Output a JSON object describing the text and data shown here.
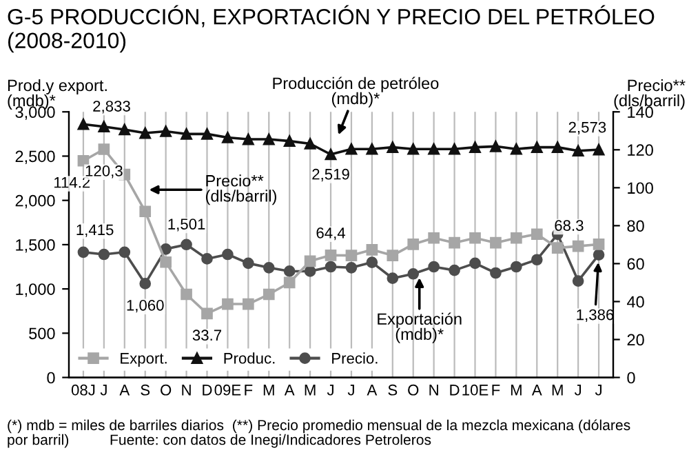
{
  "chart_data": {
    "type": "line",
    "title": "G-5 PRODUCCIÓN, EXPORTACIÓN Y PRECIO DEL PETRÓLEO (2008-2010)",
    "ylabel": "Prod.y export.\n(mdb)*",
    "y2label": "Precio**\n(dls/barril)",
    "categories": [
      "08J",
      "J",
      "A",
      "S",
      "O",
      "N",
      "D",
      "09E",
      "F",
      "M",
      "A",
      "M",
      "J",
      "J",
      "A",
      "S",
      "O",
      "N",
      "D",
      "10E",
      "F",
      "M",
      "A",
      "M",
      "J",
      "J"
    ],
    "series": [
      {
        "name": "Export.",
        "color": "#a6a6a6",
        "marker": "square",
        "axis": "y2",
        "values": [
          114.2,
          120.3,
          107,
          87.5,
          60.8,
          43.8,
          33.7,
          38.7,
          38.7,
          43.8,
          50,
          61.3,
          64.4,
          64.3,
          67.3,
          64.3,
          70.2,
          73.5,
          71.0,
          73.5,
          71.0,
          73.5,
          75.5,
          68.3,
          69.2,
          70.2
        ],
        "value_labels": [
          "114.2",
          "120,3",
          null,
          null,
          null,
          null,
          "33.7",
          null,
          null,
          null,
          null,
          null,
          "64,4",
          null,
          null,
          null,
          null,
          null,
          null,
          null,
          null,
          null,
          null,
          "68.3",
          null,
          null
        ]
      },
      {
        "name": "Produc.",
        "color": "#111111",
        "marker": "triangle",
        "values": [
          2860,
          2833,
          2800,
          2760,
          2780,
          2750,
          2750,
          2710,
          2690,
          2690,
          2670,
          2640,
          2519,
          2580,
          2580,
          2600,
          2580,
          2580,
          2580,
          2600,
          2610,
          2580,
          2600,
          2600,
          2560,
          2573
        ],
        "value_labels": [
          null,
          "2,833",
          null,
          null,
          null,
          null,
          null,
          null,
          null,
          null,
          null,
          null,
          "2,519",
          null,
          null,
          null,
          null,
          null,
          null,
          null,
          null,
          null,
          null,
          null,
          null,
          "2,573"
        ]
      },
      {
        "name": "Precio.",
        "color": "#4d4d4d",
        "marker": "circle",
        "values": [
          1415,
          1390,
          1415,
          1060,
          1450,
          1501,
          1340,
          1390,
          1290,
          1240,
          1200,
          1200,
          1250,
          1240,
          1300,
          1120,
          1170,
          1250,
          1210,
          1290,
          1180,
          1250,
          1330,
          1617,
          1090,
          1386
        ],
        "value_labels": [
          "1,415",
          null,
          null,
          "1,060",
          null,
          "1,501",
          null,
          null,
          null,
          null,
          null,
          null,
          null,
          null,
          null,
          null,
          null,
          null,
          null,
          null,
          null,
          null,
          null,
          null,
          null,
          "1,386"
        ]
      }
    ],
    "ylim": [
      0,
      3000
    ],
    "yticks": [
      0,
      500,
      {
        "value": 1000,
        "label": "1,000"
      },
      {
        "value": 1500,
        "label": "1,500"
      },
      {
        "value": 2000,
        "label": "2,000"
      },
      {
        "value": 2500,
        "label": "2,500"
      },
      {
        "value": 3000,
        "label": "3,000"
      }
    ],
    "y2lim": [
      0,
      140
    ],
    "y2ticks": [
      0,
      20,
      40,
      60,
      80,
      100,
      120,
      140
    ],
    "grid": "x",
    "legend": "bottom left",
    "line_style": "solid",
    "annotations": [
      "Precio**\n(dls/barril)",
      "Producción de petróleo\n(mdb)*",
      {
        "text": "Exportación\n(mdb)*",
        "y": 1170
      },
      "(*) mdb = miles de barriles diarios  (**) Precio promedio mensual de la mezcla mexicana (dólares\npor barril)          Fuente: con datos de Inegi/Indicadores Petroleros"
    ]
  }
}
